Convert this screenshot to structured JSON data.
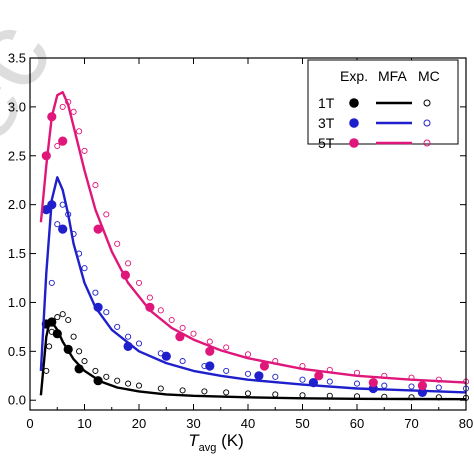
{
  "chart_data": {
    "type": "scatter",
    "title": "",
    "xlabel": "T",
    "xlabel_sub": "avg",
    "xlabel_unit": " (K)",
    "ylabel": "",
    "xlim": [
      0,
      80
    ],
    "ylim": [
      -0.1,
      3.5
    ],
    "xticks": [
      0,
      10,
      20,
      30,
      40,
      50,
      60,
      70,
      80
    ],
    "yticks": [
      0.0,
      0.5,
      1.0,
      1.5,
      2.0,
      2.5,
      3.0,
      3.5
    ],
    "grid": false,
    "legend_position": "top-right",
    "legend_headers": [
      "Exp.",
      "MFA",
      "MC"
    ],
    "colors": {
      "1T": "#000000",
      "3T": "#1f1fcc",
      "5T": "#e0177a"
    },
    "series": [
      {
        "name": "1T",
        "color": "#000000",
        "exp": [
          [
            3.0,
            0.78
          ],
          [
            4.0,
            0.8
          ],
          [
            5.0,
            0.68
          ],
          [
            7.0,
            0.52
          ],
          [
            9.0,
            0.32
          ],
          [
            12.5,
            0.2
          ]
        ],
        "mfa": [
          [
            2.0,
            0.05
          ],
          [
            2.5,
            0.35
          ],
          [
            3.0,
            0.65
          ],
          [
            3.5,
            0.78
          ],
          [
            4.0,
            0.8
          ],
          [
            5.0,
            0.72
          ],
          [
            6.0,
            0.6
          ],
          [
            8.0,
            0.42
          ],
          [
            10.0,
            0.3
          ],
          [
            13.0,
            0.19
          ],
          [
            16.0,
            0.13
          ],
          [
            20.0,
            0.09
          ],
          [
            25.0,
            0.06
          ],
          [
            30.0,
            0.045
          ],
          [
            40.0,
            0.03
          ],
          [
            50.0,
            0.02
          ],
          [
            60.0,
            0.015
          ],
          [
            70.0,
            0.012
          ],
          [
            80.0,
            0.01
          ]
        ],
        "mc": [
          [
            3.0,
            0.3
          ],
          [
            3.5,
            0.55
          ],
          [
            4.0,
            0.7
          ],
          [
            5.0,
            0.85
          ],
          [
            6.0,
            0.88
          ],
          [
            7.0,
            0.82
          ],
          [
            8.0,
            0.65
          ],
          [
            9.0,
            0.5
          ],
          [
            10.0,
            0.4
          ],
          [
            12.0,
            0.3
          ],
          [
            14.0,
            0.24
          ],
          [
            16.0,
            0.2
          ],
          [
            18.0,
            0.17
          ],
          [
            20.0,
            0.15
          ],
          [
            24.0,
            0.12
          ],
          [
            28.0,
            0.1
          ],
          [
            32.0,
            0.09
          ],
          [
            36.0,
            0.08
          ],
          [
            40.0,
            0.07
          ],
          [
            45.0,
            0.06
          ],
          [
            50.0,
            0.05
          ],
          [
            55.0,
            0.045
          ],
          [
            60.0,
            0.04
          ],
          [
            65.0,
            0.035
          ],
          [
            70.0,
            0.03
          ],
          [
            75.0,
            0.03
          ],
          [
            80.0,
            0.025
          ]
        ]
      },
      {
        "name": "3T",
        "color": "#1f1fcc",
        "exp": [
          [
            3.0,
            1.95
          ],
          [
            4.0,
            2.0
          ],
          [
            6.0,
            1.75
          ],
          [
            12.5,
            0.95
          ],
          [
            18.0,
            0.55
          ],
          [
            25.0,
            0.45
          ],
          [
            33.0,
            0.35
          ],
          [
            42.0,
            0.25
          ],
          [
            52.0,
            0.18
          ],
          [
            63.0,
            0.12
          ],
          [
            72.0,
            0.08
          ]
        ],
        "mfa": [
          [
            2.0,
            0.3
          ],
          [
            3.0,
            1.3
          ],
          [
            4.0,
            2.05
          ],
          [
            5.0,
            2.28
          ],
          [
            6.0,
            2.15
          ],
          [
            7.0,
            1.9
          ],
          [
            8.0,
            1.6
          ],
          [
            10.0,
            1.2
          ],
          [
            12.0,
            0.95
          ],
          [
            15.0,
            0.72
          ],
          [
            20.0,
            0.5
          ],
          [
            25.0,
            0.38
          ],
          [
            30.0,
            0.3
          ],
          [
            35.0,
            0.25
          ],
          [
            40.0,
            0.21
          ],
          [
            50.0,
            0.16
          ],
          [
            60.0,
            0.12
          ],
          [
            70.0,
            0.1
          ],
          [
            80.0,
            0.08
          ]
        ],
        "mc": [
          [
            4.0,
            1.2
          ],
          [
            5.0,
            1.8
          ],
          [
            6.0,
            2.0
          ],
          [
            7.0,
            1.9
          ],
          [
            8.0,
            1.7
          ],
          [
            9.0,
            1.5
          ],
          [
            10.0,
            1.35
          ],
          [
            12.0,
            1.1
          ],
          [
            14.0,
            0.9
          ],
          [
            16.0,
            0.75
          ],
          [
            18.0,
            0.65
          ],
          [
            20.0,
            0.58
          ],
          [
            24.0,
            0.48
          ],
          [
            28.0,
            0.4
          ],
          [
            32.0,
            0.35
          ],
          [
            36.0,
            0.3
          ],
          [
            40.0,
            0.27
          ],
          [
            45.0,
            0.24
          ],
          [
            50.0,
            0.21
          ],
          [
            55.0,
            0.19
          ],
          [
            60.0,
            0.17
          ],
          [
            65.0,
            0.15
          ],
          [
            70.0,
            0.14
          ],
          [
            75.0,
            0.13
          ],
          [
            80.0,
            0.12
          ]
        ]
      },
      {
        "name": "5T",
        "color": "#e0177a",
        "exp": [
          [
            3.0,
            2.5
          ],
          [
            4.0,
            2.9
          ],
          [
            6.0,
            2.65
          ],
          [
            12.5,
            1.75
          ],
          [
            17.5,
            1.28
          ],
          [
            22.0,
            0.95
          ],
          [
            27.5,
            0.65
          ],
          [
            33.0,
            0.5
          ],
          [
            43.0,
            0.35
          ],
          [
            53.0,
            0.25
          ],
          [
            63.0,
            0.18
          ],
          [
            72.0,
            0.15
          ]
        ],
        "mfa": [
          [
            2.0,
            1.82
          ],
          [
            3.0,
            2.4
          ],
          [
            4.0,
            2.9
          ],
          [
            5.0,
            3.12
          ],
          [
            6.0,
            3.15
          ],
          [
            7.0,
            3.02
          ],
          [
            8.0,
            2.8
          ],
          [
            10.0,
            2.35
          ],
          [
            12.0,
            1.95
          ],
          [
            15.0,
            1.52
          ],
          [
            18.0,
            1.2
          ],
          [
            22.0,
            0.92
          ],
          [
            26.0,
            0.74
          ],
          [
            30.0,
            0.62
          ],
          [
            35.0,
            0.51
          ],
          [
            40.0,
            0.43
          ],
          [
            50.0,
            0.32
          ],
          [
            60.0,
            0.25
          ],
          [
            70.0,
            0.21
          ],
          [
            80.0,
            0.18
          ]
        ],
        "mc": [
          [
            5.0,
            2.6
          ],
          [
            6.0,
            3.0
          ],
          [
            7.0,
            3.05
          ],
          [
            8.0,
            2.95
          ],
          [
            9.0,
            2.75
          ],
          [
            10.0,
            2.55
          ],
          [
            12.0,
            2.2
          ],
          [
            14.0,
            1.9
          ],
          [
            16.0,
            1.6
          ],
          [
            18.0,
            1.4
          ],
          [
            20.0,
            1.2
          ],
          [
            22.0,
            1.05
          ],
          [
            24.0,
            0.92
          ],
          [
            26.0,
            0.82
          ],
          [
            28.0,
            0.74
          ],
          [
            30.0,
            0.68
          ],
          [
            33.0,
            0.6
          ],
          [
            36.0,
            0.54
          ],
          [
            40.0,
            0.47
          ],
          [
            45.0,
            0.4
          ],
          [
            50.0,
            0.35
          ],
          [
            55.0,
            0.31
          ],
          [
            60.0,
            0.28
          ],
          [
            65.0,
            0.25
          ],
          [
            70.0,
            0.23
          ],
          [
            75.0,
            0.21
          ],
          [
            80.0,
            0.19
          ]
        ]
      }
    ]
  }
}
